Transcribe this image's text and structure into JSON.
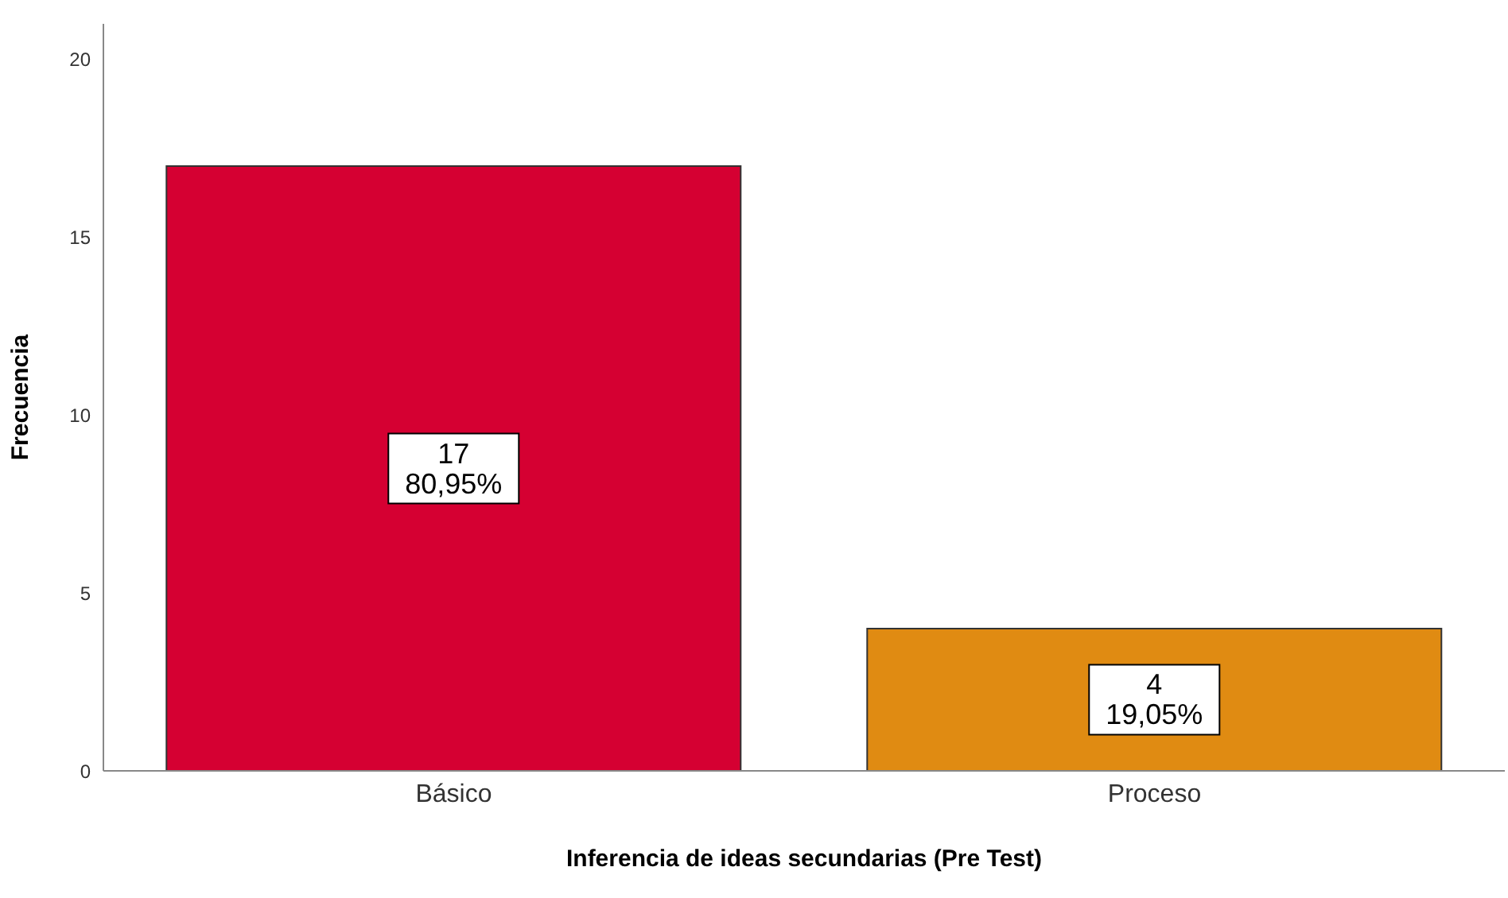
{
  "chart_data": {
    "type": "bar",
    "xlabel": "Inferencia de ideas secundarias (Pre Test)",
    "ylabel": "Frecuencia",
    "categories": [
      "Básico",
      "Proceso"
    ],
    "values": [
      17,
      4
    ],
    "colors": [
      "#d50032",
      "#e08b12"
    ],
    "value_labels": [
      "17\n80,95%",
      "4\n19,05%"
    ],
    "ylim": [
      0,
      21
    ],
    "yticks": [
      0,
      5,
      10,
      15,
      20
    ],
    "grid": false
  }
}
